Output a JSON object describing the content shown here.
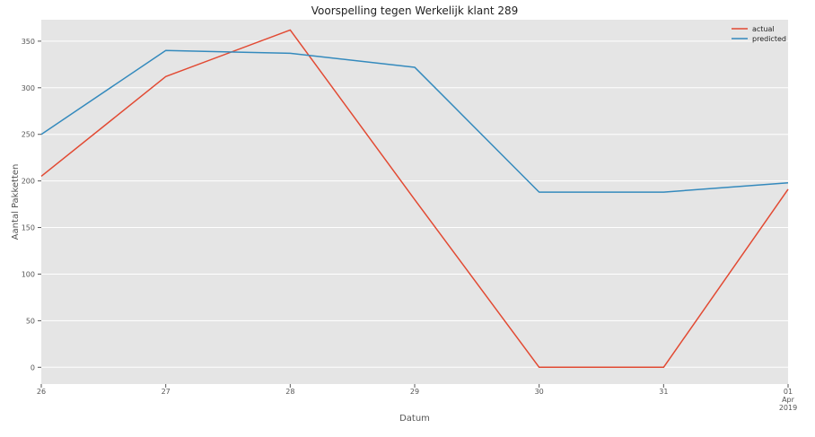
{
  "chart_data": {
    "type": "line",
    "title": "Voorspelling tegen Werkelijk klant 289",
    "xlabel": "Datum",
    "ylabel": "Aantal Pakketten",
    "x": [
      "26",
      "27",
      "28",
      "29",
      "30",
      "31",
      "01\nApr\n2019"
    ],
    "x_ticks": [
      {
        "lines": [
          "26"
        ]
      },
      {
        "lines": [
          "27"
        ]
      },
      {
        "lines": [
          "28"
        ]
      },
      {
        "lines": [
          "29"
        ]
      },
      {
        "lines": [
          "30"
        ]
      },
      {
        "lines": [
          "31"
        ]
      },
      {
        "lines": [
          "01",
          "Apr",
          "2019"
        ]
      }
    ],
    "ylim": [
      -18,
      373
    ],
    "yticks": [
      0,
      50,
      100,
      150,
      200,
      250,
      300,
      350
    ],
    "grid": true,
    "legend": "top-right",
    "series": [
      {
        "name": "actual",
        "color": "#E24A33",
        "values": [
          205,
          312,
          362,
          180,
          0,
          0,
          191
        ]
      },
      {
        "name": "predicted",
        "color": "#348ABD",
        "values": [
          250,
          340,
          337,
          322,
          188,
          188,
          198
        ]
      }
    ]
  }
}
